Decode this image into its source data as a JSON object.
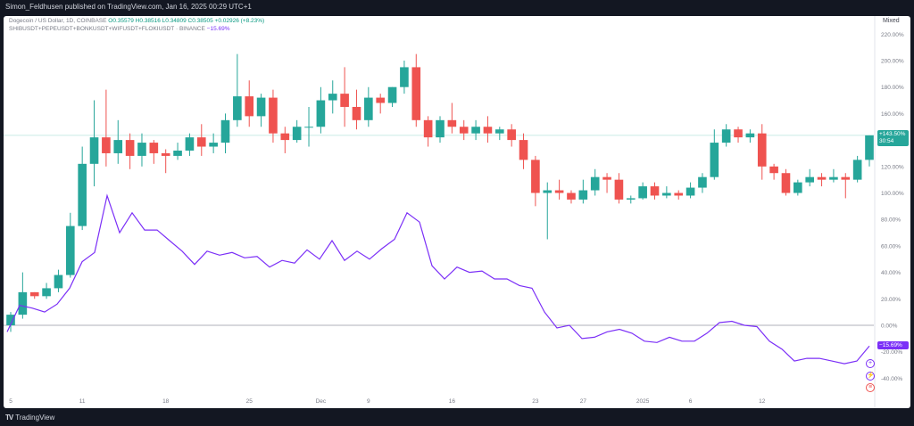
{
  "header": {
    "publish_text": "Simon_Feldhusen published on TradingView.com, Jan 16, 2025 00:29 UTC+1"
  },
  "legend": {
    "symbol": "Dogecoin / US Dollar, 1D, COINBASE",
    "ohlc": "O0.35579 H0.38516 L0.34809 C0.38505 +0.02926 (+8.23%)",
    "ratio_symbol": "SHIBUSDT+PEPEUSDT+BONKUSDT+WIFUSDT+FLOKIUSDT · BINANCE",
    "ratio_change": "−15.69%"
  },
  "scale_mode": "Mixed",
  "price_tag": {
    "value": "+143.50%",
    "countdown": "30:54"
  },
  "ratio_tag": {
    "value": "−15.69%"
  },
  "footer": {
    "brand": "TradingView"
  },
  "colors": {
    "up": "#26a69a",
    "down": "#ef5350",
    "line": "#7b2ff7",
    "last_price_line": "#b7e4dd"
  },
  "chart_data": {
    "type": "line",
    "y_unit": "%",
    "ylim": [
      -50,
      225
    ],
    "y_ticks": [
      220,
      200,
      180,
      160,
      140,
      120,
      100,
      80,
      60,
      40,
      20,
      0,
      -20,
      -40
    ],
    "y_tick_labels": [
      "220.00%",
      "200.00%",
      "180.00%",
      "160.00%",
      "140.00%",
      "120.00%",
      "100.00%",
      "80.00%",
      "60.00%",
      "40.00%",
      "20.00%",
      "0.00%",
      "-20.00%",
      "-40.00%"
    ],
    "x_tick_labels": [
      {
        "i": 0,
        "label": "5"
      },
      {
        "i": 6,
        "label": "11"
      },
      {
        "i": 13,
        "label": "18"
      },
      {
        "i": 20,
        "label": "25"
      },
      {
        "i": 26,
        "label": "Dec"
      },
      {
        "i": 30,
        "label": "9"
      },
      {
        "i": 37,
        "label": "16"
      },
      {
        "i": 44,
        "label": "23"
      },
      {
        "i": 48,
        "label": "27"
      },
      {
        "i": 53,
        "label": "2025"
      },
      {
        "i": 57,
        "label": "6"
      },
      {
        "i": 63,
        "label": "12"
      }
    ],
    "candles": [
      [
        0,
        8,
        -5,
        10
      ],
      [
        8,
        25,
        5,
        40
      ],
      [
        25,
        22,
        20,
        25
      ],
      [
        22,
        28,
        20,
        32
      ],
      [
        28,
        38,
        25,
        42
      ],
      [
        38,
        75,
        36,
        85
      ],
      [
        75,
        122,
        72,
        135
      ],
      [
        122,
        142,
        105,
        170
      ],
      [
        142,
        130,
        120,
        178
      ],
      [
        130,
        140,
        122,
        155
      ],
      [
        140,
        128,
        118,
        145
      ],
      [
        128,
        138,
        120,
        145
      ],
      [
        138,
        130,
        122,
        140
      ],
      [
        130,
        128,
        115,
        133
      ],
      [
        128,
        132,
        125,
        138
      ],
      [
        132,
        142,
        128,
        145
      ],
      [
        142,
        135,
        128,
        152
      ],
      [
        135,
        138,
        130,
        145
      ],
      [
        138,
        155,
        130,
        160
      ],
      [
        155,
        173,
        150,
        205
      ],
      [
        173,
        158,
        150,
        185
      ],
      [
        158,
        172,
        150,
        175
      ],
      [
        172,
        145,
        138,
        178
      ],
      [
        145,
        140,
        130,
        150
      ],
      [
        140,
        150,
        138,
        155
      ],
      [
        150,
        150,
        135,
        165
      ],
      [
        150,
        170,
        145,
        180
      ],
      [
        170,
        175,
        160,
        185
      ],
      [
        175,
        165,
        150,
        195
      ],
      [
        165,
        155,
        148,
        178
      ],
      [
        155,
        172,
        150,
        180
      ],
      [
        172,
        168,
        160,
        175
      ],
      [
        168,
        180,
        165,
        180
      ],
      [
        180,
        195,
        175,
        200
      ],
      [
        195,
        155,
        150,
        205
      ],
      [
        155,
        142,
        135,
        158
      ],
      [
        142,
        155,
        138,
        158
      ],
      [
        155,
        150,
        145,
        168
      ],
      [
        150,
        145,
        140,
        155
      ],
      [
        145,
        150,
        140,
        155
      ],
      [
        150,
        145,
        138,
        158
      ],
      [
        145,
        148,
        140,
        150
      ],
      [
        148,
        140,
        135,
        152
      ],
      [
        140,
        125,
        118,
        145
      ],
      [
        125,
        100,
        90,
        128
      ],
      [
        100,
        102,
        65,
        108
      ],
      [
        102,
        100,
        95,
        110
      ],
      [
        100,
        95,
        92,
        102
      ],
      [
        95,
        102,
        92,
        110
      ],
      [
        102,
        112,
        98,
        118
      ],
      [
        112,
        110,
        100,
        115
      ],
      [
        110,
        95,
        92,
        115
      ],
      [
        95,
        96,
        92,
        98
      ],
      [
        96,
        105,
        95,
        108
      ],
      [
        105,
        98,
        95,
        108
      ],
      [
        98,
        100,
        96,
        105
      ],
      [
        100,
        98,
        95,
        102
      ],
      [
        98,
        104,
        96,
        108
      ],
      [
        104,
        112,
        100,
        115
      ],
      [
        112,
        138,
        110,
        148
      ],
      [
        138,
        148,
        135,
        152
      ],
      [
        148,
        142,
        138,
        150
      ],
      [
        142,
        145,
        138,
        148
      ],
      [
        145,
        120,
        110,
        152
      ],
      [
        120,
        115,
        110,
        122
      ],
      [
        115,
        100,
        98,
        118
      ],
      [
        100,
        108,
        98,
        110
      ],
      [
        108,
        112,
        105,
        118
      ],
      [
        112,
        110,
        105,
        115
      ],
      [
        110,
        112,
        108,
        118
      ],
      [
        112,
        110,
        96,
        115
      ],
      [
        110,
        125,
        108,
        128
      ],
      [
        125,
        143.5,
        120,
        143.5
      ]
    ],
    "series": [
      {
        "name": "SHIBUSDT+PEPEUSDT+BONKUSDT+WIFUSDT+FLOKIUSDT",
        "values": [
          -5,
          15,
          13,
          10,
          16,
          28,
          48,
          55,
          98,
          70,
          85,
          72,
          72,
          64,
          56,
          46,
          56,
          53,
          55,
          51,
          52,
          44,
          49,
          47,
          57,
          50,
          64,
          49,
          56,
          50,
          58,
          65,
          85,
          78,
          45,
          35,
          44,
          40,
          41,
          35,
          35,
          30,
          28,
          10,
          -2,
          0,
          -10,
          -9,
          -5,
          -3,
          -6,
          -12,
          -13,
          -9,
          -12,
          -12,
          -6,
          2,
          3,
          0,
          -1,
          -12,
          -18,
          -27,
          -25,
          -25,
          -27,
          -29,
          -27,
          -15.69
        ]
      }
    ],
    "last_price_pct": 143.5
  }
}
